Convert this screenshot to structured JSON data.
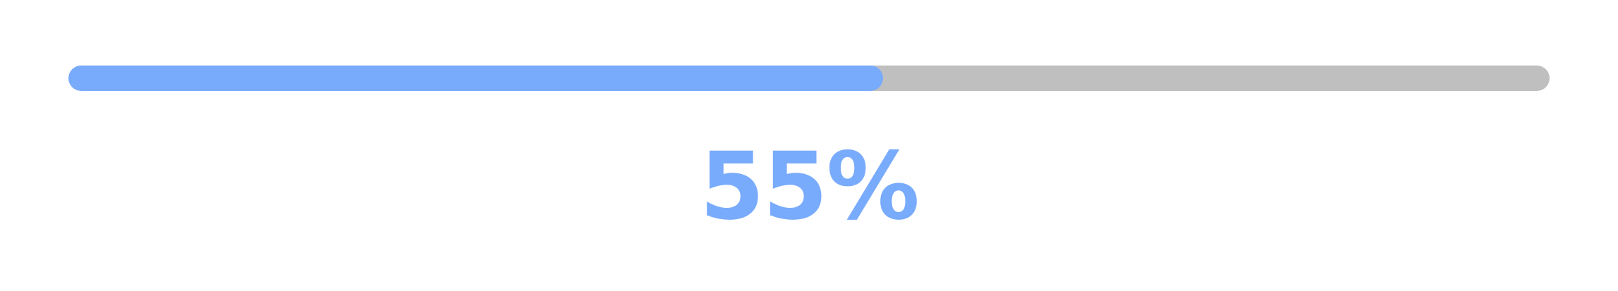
{
  "progress": {
    "value_percent": 55,
    "label": "55%",
    "fill_color": "#79abfc",
    "track_color": "#bfbfbf"
  }
}
